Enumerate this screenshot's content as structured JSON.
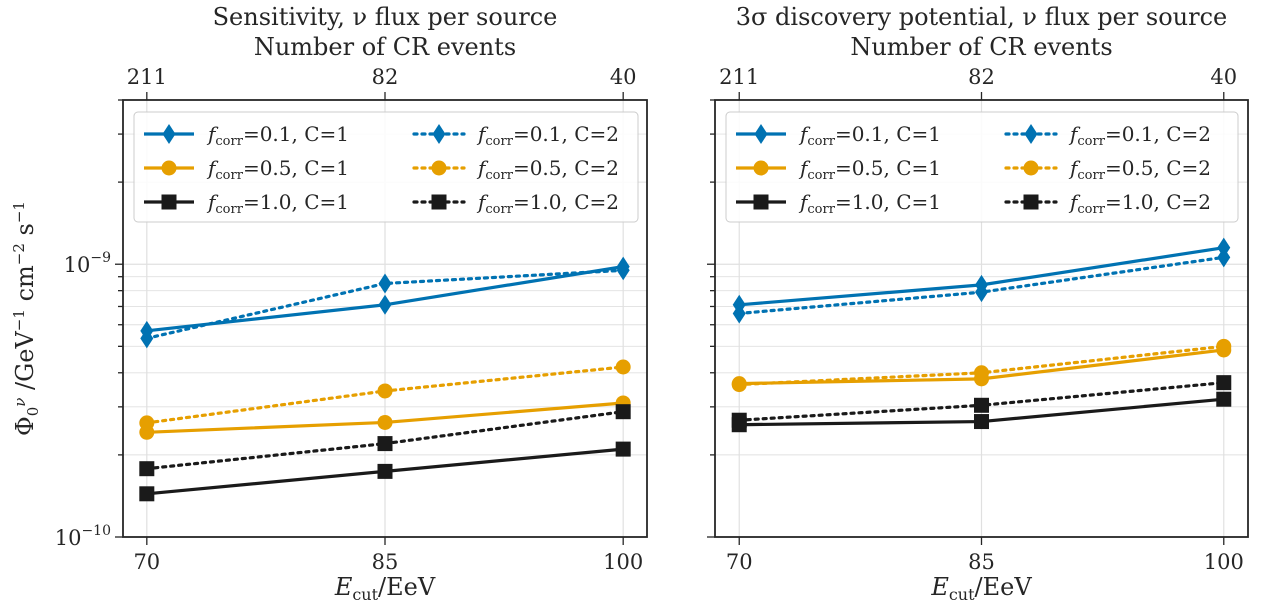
{
  "colors": {
    "blue": "#0072b2",
    "orange": "#e69f00",
    "black": "#1a1a1a",
    "grid": "#e0e0e0",
    "frame": "#262626"
  },
  "shared": {
    "ylabel": "Φ₀^ν /GeV⁻¹ cm⁻² s⁻¹",
    "xlabel": "E_cut/EeV",
    "top_axis_label": "Number of CR events",
    "y_tick_labels": [
      "10⁻¹⁰",
      "10⁻⁹"
    ]
  },
  "chart_data": [
    {
      "type": "line",
      "title": "Sensitivity, ν flux per source",
      "xlabel": "E_cut/EeV",
      "ylabel": "Φ₀^ν /GeV⁻¹ cm⁻² s⁻¹",
      "top_xlabel": "Number of CR events",
      "x": [
        70,
        85,
        100
      ],
      "x_tick_labels": [
        "70",
        "85",
        "100"
      ],
      "top_x_tick_labels": [
        "211",
        "82",
        "40"
      ],
      "xlim": [
        68.5,
        101.5
      ],
      "ylim": [
        1e-10,
        4e-09
      ],
      "yscale": "log",
      "grid": true,
      "legend": "upper",
      "series": [
        {
          "name": "f_corr=0.1, C=1",
          "color": "blue",
          "style": "solid",
          "marker": "diamond",
          "values": [
            5.7e-10,
            7.1e-10,
            9.8e-10
          ]
        },
        {
          "name": "f_corr=0.5, C=1",
          "color": "orange",
          "style": "solid",
          "marker": "circle",
          "values": [
            2.42e-10,
            2.63e-10,
            3.1e-10
          ]
        },
        {
          "name": "f_corr=1.0, C=1",
          "color": "black",
          "style": "solid",
          "marker": "square",
          "values": [
            1.44e-10,
            1.74e-10,
            2.1e-10
          ]
        },
        {
          "name": "f_corr=0.1, C=2",
          "color": "blue",
          "style": "dotted",
          "marker": "diamond",
          "values": [
            5.35e-10,
            8.5e-10,
            9.5e-10
          ]
        },
        {
          "name": "f_corr=0.5, C=2",
          "color": "orange",
          "style": "dotted",
          "marker": "circle",
          "values": [
            2.62e-10,
            3.43e-10,
            4.2e-10
          ]
        },
        {
          "name": "f_corr=1.0, C=2",
          "color": "black",
          "style": "dotted",
          "marker": "square",
          "values": [
            1.78e-10,
            2.2e-10,
            2.88e-10
          ]
        }
      ]
    },
    {
      "type": "line",
      "title": "3σ discovery potential, ν flux per source",
      "xlabel": "E_cut/EeV",
      "top_xlabel": "Number of CR events",
      "x": [
        70,
        85,
        100
      ],
      "x_tick_labels": [
        "70",
        "85",
        "100"
      ],
      "top_x_tick_labels": [
        "211",
        "82",
        "40"
      ],
      "xlim": [
        68.5,
        101.5
      ],
      "ylim": [
        1e-10,
        4e-09
      ],
      "yscale": "log",
      "grid": true,
      "legend": "upper",
      "series": [
        {
          "name": "f_corr=0.1, C=1",
          "color": "blue",
          "style": "solid",
          "marker": "diamond",
          "values": [
            7.1e-10,
            8.4e-10,
            1.15e-09
          ]
        },
        {
          "name": "f_corr=0.5, C=1",
          "color": "orange",
          "style": "solid",
          "marker": "circle",
          "values": [
            3.65e-10,
            3.8e-10,
            4.85e-10
          ]
        },
        {
          "name": "f_corr=1.0, C=1",
          "color": "black",
          "style": "solid",
          "marker": "square",
          "values": [
            2.58e-10,
            2.65e-10,
            3.2e-10
          ]
        },
        {
          "name": "f_corr=0.1, C=2",
          "color": "blue",
          "style": "dotted",
          "marker": "diamond",
          "values": [
            6.6e-10,
            7.9e-10,
            1.06e-09
          ]
        },
        {
          "name": "f_corr=0.5, C=2",
          "color": "orange",
          "style": "dotted",
          "marker": "circle",
          "values": [
            3.62e-10,
            4e-10,
            5e-10
          ]
        },
        {
          "name": "f_corr=1.0, C=2",
          "color": "black",
          "style": "dotted",
          "marker": "square",
          "values": [
            2.68e-10,
            3.04e-10,
            3.68e-10
          ]
        }
      ]
    }
  ]
}
